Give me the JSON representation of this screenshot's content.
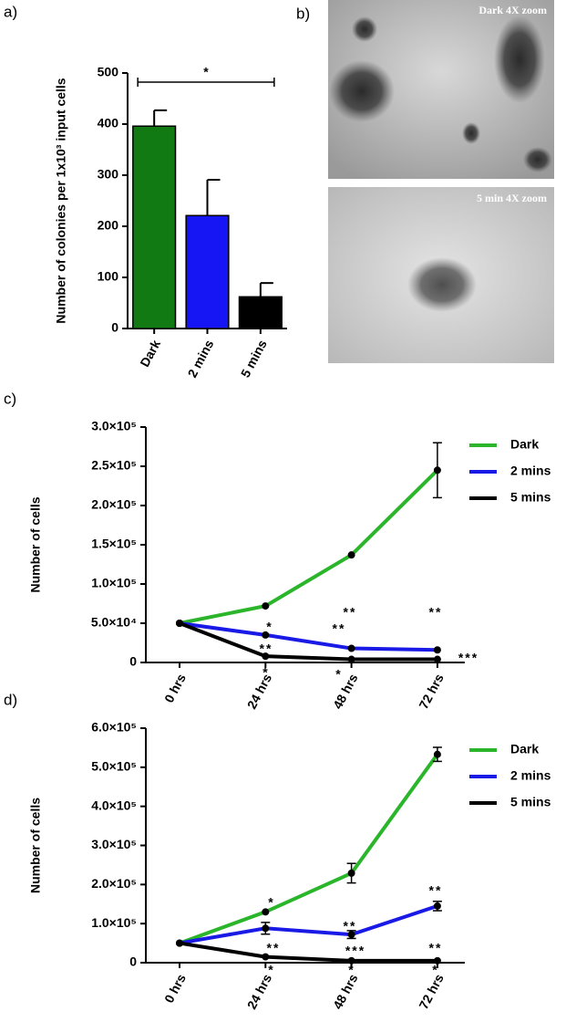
{
  "chart_data": [
    {
      "type": "bar",
      "panel": "a)",
      "y_label": "Number of colonies per 1x10³ input cells",
      "categories": [
        "Dark",
        "2 mins",
        "5 mins"
      ],
      "values": [
        396,
        221,
        62
      ],
      "errors": [
        31,
        70,
        27
      ],
      "colors": [
        "#127a12",
        "#1616f5",
        "#000000"
      ],
      "ylim": [
        0,
        500
      ],
      "yticks": [
        0,
        100,
        200,
        300,
        400,
        500
      ],
      "annotations": [
        "*"
      ]
    },
    {
      "type": "line",
      "panel": "c)",
      "y_label": "Number of cells",
      "categories": [
        "0 hrs",
        "24 hrs",
        "48 hrs",
        "72 hrs"
      ],
      "series": [
        {
          "name": "Dark",
          "color": "#2ab52a",
          "values": [
            50000,
            72000,
            137000,
            245000
          ],
          "errors": [
            null,
            null,
            null,
            35000
          ]
        },
        {
          "name": "2 mins",
          "color": "#1a1ae6",
          "values": [
            50000,
            35000,
            18000,
            16000
          ]
        },
        {
          "name": "5 mins",
          "color": "#000000",
          "values": [
            50000,
            8000,
            4000,
            4000
          ]
        }
      ],
      "ylim": [
        0,
        300000
      ],
      "yticks": [
        0,
        {
          "value": 50000,
          "label": "5.0×10⁴"
        },
        {
          "value": 100000,
          "label": "1.0×10⁵"
        },
        {
          "value": 150000,
          "label": "1.5×10⁵"
        },
        {
          "value": 200000,
          "label": "2.0×10⁵"
        },
        {
          "value": 250000,
          "label": "2.5×10⁵"
        },
        {
          "value": 300000,
          "label": "3.0×10⁵"
        }
      ],
      "legend": "upper right",
      "annotations": [
        "*",
        "**",
        "*",
        "**",
        "**",
        "*",
        "**",
        "***"
      ]
    },
    {
      "type": "line",
      "panel": "d)",
      "y_label": "Number of cells",
      "categories": [
        "0 hrs",
        "24 hrs",
        "48 hrs",
        "72 hrs"
      ],
      "series": [
        {
          "name": "Dark",
          "color": "#2ab52a",
          "values": [
            50000,
            130000,
            229000,
            533000
          ],
          "errors": [
            null,
            null,
            25000,
            18000
          ]
        },
        {
          "name": "2 mins",
          "color": "#1a1ae6",
          "values": [
            50000,
            88000,
            72000,
            145000
          ],
          "errors": [
            null,
            15000,
            10000,
            12000
          ]
        },
        {
          "name": "5 mins",
          "color": "#000000",
          "values": [
            50000,
            15000,
            5000,
            5000
          ]
        }
      ],
      "ylim": [
        0,
        600000
      ],
      "yticks": [
        0,
        {
          "value": 100000,
          "label": "1.0×10⁵"
        },
        {
          "value": 200000,
          "label": "2.0×10⁵"
        },
        {
          "value": 300000,
          "label": "3.0×10⁵"
        },
        {
          "value": 400000,
          "label": "4.0×10⁵"
        },
        {
          "value": 500000,
          "label": "5.0×10⁵"
        },
        {
          "value": 600000,
          "label": "6.0×10⁵"
        }
      ],
      "legend": "upper right",
      "annotations": [
        "*",
        "**",
        "*",
        "**",
        "***",
        "*",
        "**",
        "**",
        "*"
      ]
    }
  ],
  "images": {
    "panel": "b)",
    "captions": [
      "Dark 4X zoom",
      "5 min 4X zoom"
    ]
  }
}
